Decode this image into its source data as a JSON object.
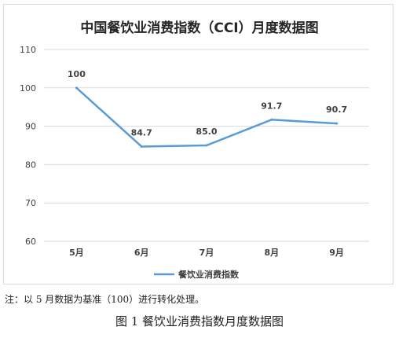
{
  "chart_data": {
    "type": "line",
    "title": "中国餐饮业消费指数（CCI）月度数据图",
    "categories": [
      "5月",
      "6月",
      "7月",
      "8月",
      "9月"
    ],
    "series": [
      {
        "name": "餐饮业消费指数",
        "values": [
          100,
          84.7,
          85.0,
          91.7,
          90.7
        ],
        "labels": [
          "100",
          "84.7",
          "85.0",
          "91.7",
          "90.7"
        ]
      }
    ],
    "yticks": [
      "60",
      "70",
      "80",
      "90",
      "100",
      "110"
    ],
    "ylim": [
      60,
      110
    ],
    "grid": true,
    "legend": "bottom",
    "color": "#5b9bd5"
  },
  "note": "注：以 5 月数据为基准（100）进行转化处理。",
  "caption": "图 1 餐饮业消费指数月度数据图"
}
